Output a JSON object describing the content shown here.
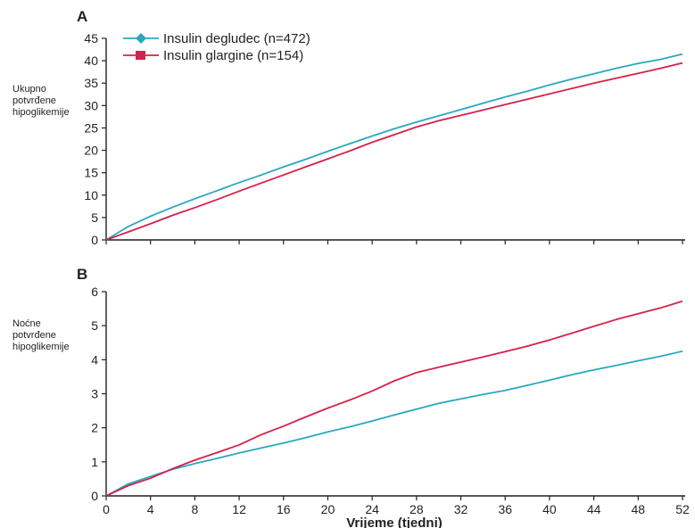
{
  "colors": {
    "degludec": "#2aa8bf",
    "glargine": "#d4224a",
    "axis": "#231f20"
  },
  "legend": [
    {
      "label": "Insulin degludec (n=472)",
      "color": "#2aa8bf",
      "marker": "diamond"
    },
    {
      "label": "Insulin glargine (n=154)",
      "color": "#d4224a",
      "marker": "square"
    }
  ],
  "chart_data": [
    {
      "panel": "A",
      "type": "line",
      "title": "",
      "xlabel": "",
      "ylabel": "Ukupno potvrđene hipoglikemije",
      "ylabel_lines": [
        "Ukupno",
        "potvrđene",
        "hipoglikemije"
      ],
      "xlim": [
        0,
        52
      ],
      "ylim": [
        0,
        45
      ],
      "xticks": [
        0,
        4,
        8,
        12,
        16,
        20,
        24,
        28,
        32,
        36,
        40,
        44,
        48,
        52
      ],
      "yticks": [
        0,
        5,
        10,
        15,
        20,
        25,
        30,
        35,
        40,
        45
      ],
      "x": [
        0,
        2,
        4,
        6,
        8,
        10,
        12,
        14,
        16,
        18,
        20,
        22,
        24,
        26,
        28,
        30,
        32,
        34,
        36,
        38,
        40,
        42,
        44,
        46,
        48,
        50,
        52
      ],
      "series": [
        {
          "name": "Insulin degludec (n=472)",
          "color": "#2aa8bf",
          "values": [
            0,
            3.0,
            5.3,
            7.3,
            9.2,
            11.0,
            12.8,
            14.5,
            16.3,
            18.0,
            19.8,
            21.5,
            23.2,
            24.8,
            26.3,
            27.7,
            29.1,
            30.5,
            31.9,
            33.2,
            34.6,
            35.9,
            37.1,
            38.3,
            39.4,
            40.3,
            41.5
          ]
        },
        {
          "name": "Insulin glargine (n=154)",
          "color": "#d4224a",
          "values": [
            0,
            1.8,
            3.6,
            5.5,
            7.2,
            9.0,
            10.9,
            12.7,
            14.5,
            16.3,
            18.1,
            19.9,
            21.8,
            23.5,
            25.2,
            26.6,
            27.8,
            29.0,
            30.2,
            31.4,
            32.6,
            33.8,
            35.0,
            36.1,
            37.2,
            38.3,
            39.5
          ]
        }
      ]
    },
    {
      "panel": "B",
      "type": "line",
      "title": "",
      "xlabel": "Vrijeme (tjedni)",
      "ylabel": "Noćne potvrđene hipoglikemije",
      "ylabel_lines": [
        "Noćne",
        "potvrđene",
        "hipoglikemije"
      ],
      "xlim": [
        0,
        52
      ],
      "ylim": [
        0,
        6
      ],
      "xticks": [
        0,
        4,
        8,
        12,
        16,
        20,
        24,
        28,
        32,
        36,
        40,
        44,
        48,
        52
      ],
      "yticks": [
        0,
        1,
        2,
        3,
        4,
        5,
        6
      ],
      "x": [
        0,
        2,
        4,
        6,
        8,
        10,
        12,
        14,
        16,
        18,
        20,
        22,
        24,
        26,
        28,
        30,
        32,
        34,
        36,
        38,
        40,
        42,
        44,
        46,
        48,
        50,
        52
      ],
      "series": [
        {
          "name": "Insulin degludec (n=472)",
          "color": "#2aa8bf",
          "values": [
            0,
            0.35,
            0.57,
            0.78,
            0.95,
            1.1,
            1.26,
            1.41,
            1.55,
            1.71,
            1.88,
            2.03,
            2.2,
            2.38,
            2.55,
            2.72,
            2.85,
            2.98,
            3.1,
            3.25,
            3.4,
            3.56,
            3.7,
            3.83,
            3.97,
            4.1,
            4.25
          ]
        },
        {
          "name": "Insulin glargine (n=154)",
          "color": "#d4224a",
          "values": [
            0,
            0.3,
            0.52,
            0.8,
            1.05,
            1.27,
            1.5,
            1.8,
            2.05,
            2.32,
            2.58,
            2.82,
            3.08,
            3.38,
            3.62,
            3.78,
            3.93,
            4.08,
            4.24,
            4.4,
            4.58,
            4.78,
            4.98,
            5.18,
            5.35,
            5.52,
            5.72
          ]
        }
      ]
    }
  ]
}
